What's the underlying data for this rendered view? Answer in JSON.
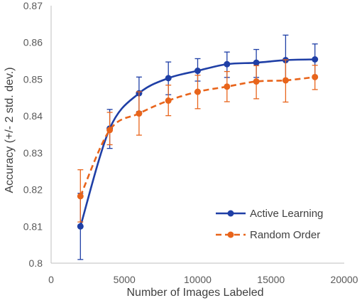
{
  "chart_data": {
    "type": "line",
    "xlabel": "Number of Images Labeled",
    "ylabel": "Accuracy (+/- 2 std. dev.)",
    "xlim": [
      0,
      20000
    ],
    "ylim": [
      0.8,
      0.87
    ],
    "x_ticks": [
      0,
      5000,
      10000,
      15000,
      20000
    ],
    "y_ticks": [
      0.8,
      0.81,
      0.82,
      0.83,
      0.84,
      0.85,
      0.86,
      0.87
    ],
    "x_tick_labels": [
      "0",
      "5000",
      "10000",
      "15000",
      "20000"
    ],
    "y_tick_labels": [
      "0.8",
      "0.81",
      "0.82",
      "0.83",
      "0.84",
      "0.85",
      "0.86",
      "0.87"
    ],
    "grid": false,
    "legend_position": "bottom-right",
    "x": [
      2000,
      4000,
      6000,
      8000,
      10000,
      12000,
      14000,
      16000,
      18000
    ],
    "series": [
      {
        "name": "Active Learning",
        "color": "#1f3fa6",
        "line_style": "solid",
        "values": [
          0.81,
          0.8366,
          0.8462,
          0.8503,
          0.8523,
          0.8541,
          0.8545,
          0.8552,
          0.8554
        ],
        "err_low": [
          0.801,
          0.8312,
          0.8412,
          0.8458,
          0.8495,
          0.8505,
          0.8505,
          0.8495,
          0.8505
        ],
        "err_high": [
          0.819,
          0.8418,
          0.8506,
          0.8547,
          0.8556,
          0.8574,
          0.8581,
          0.862,
          0.8596
        ]
      },
      {
        "name": "Random Order",
        "color": "#e8641b",
        "line_style": "dashed",
        "values": [
          0.8182,
          0.8362,
          0.8407,
          0.8442,
          0.8466,
          0.848,
          0.8494,
          0.8497,
          0.8506
        ],
        "err_low": [
          0.8112,
          0.8322,
          0.8348,
          0.8401,
          0.842,
          0.8439,
          0.8447,
          0.8438,
          0.8472
        ],
        "err_high": [
          0.8254,
          0.841,
          0.8466,
          0.8484,
          0.8511,
          0.8521,
          0.8537,
          0.8553,
          0.8538
        ]
      }
    ]
  }
}
